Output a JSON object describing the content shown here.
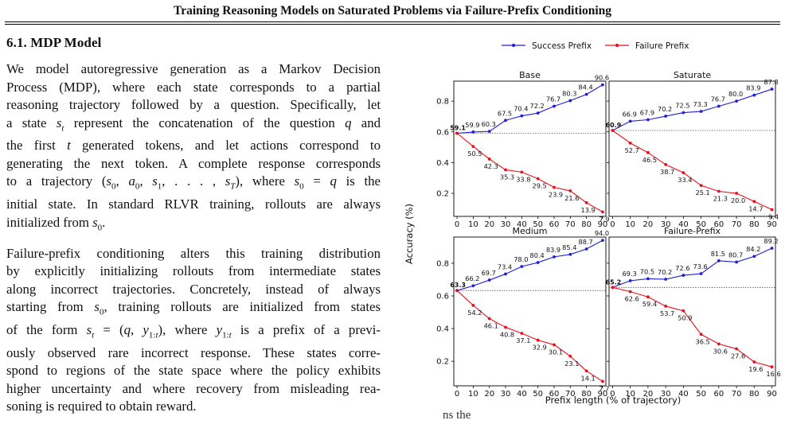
{
  "header": {
    "title": "Training Reasoning Models on Saturated Problems via Failure-Prefix Conditioning"
  },
  "section": {
    "title": "6.1. MDP Model"
  },
  "paragraphs": {
    "p1": [
      "We model autoregressive generation as a Markov Decision",
      "Process (MDP), where each state corresponds to a partial",
      "reasoning trajectory followed by a question. Specifically, let",
      "a state s_t represent the concatenation of the question q and",
      "the first t generated tokens, and let actions correspond to",
      "generating the next token. A complete response corresponds",
      "to a trajectory (s_0, a_0, s_1, . . . , s_T), where s_0 = q is the",
      "initial state. In standard RLVR training, rollouts are always",
      "initialized from s_0."
    ],
    "p2": [
      "Failure-prefix conditioning alters this training distribution",
      "by explicitly initializing rollouts from intermediate states",
      "along incorrect trajectories. Concretely, instead of always",
      "starting from s_0, training rollouts are initialized from states",
      "of the form s_t = (q, y_1:t), where y_1:t is a prefix of a previ-",
      "ously observed rare incorrect response. These states corre-",
      "spond to regions of the state space where the policy exhibits",
      "higher uncertainty and where recovery from misleading rea-",
      "soning is required to obtain reward."
    ]
  },
  "figure": {
    "legend": [
      "Success Prefix",
      "Failure Prefix"
    ],
    "ylabel": "Accuracy (%)",
    "xlabel": "Prefix length (% of trajectory)",
    "colors": {
      "success": "#1f1fd6",
      "failure": "#e8101a",
      "baseline": "#555555"
    },
    "bottom_caption_fragment": "ns the"
  },
  "chart_data": [
    {
      "type": "line",
      "title": "Base",
      "x": [
        0,
        10,
        20,
        30,
        40,
        50,
        60,
        70,
        80,
        90
      ],
      "xlabel": "",
      "ylabel": "Accuracy (%)",
      "ylim": [
        0.05,
        0.93
      ],
      "yticks": [
        0.2,
        0.4,
        0.6,
        0.8
      ],
      "grid": false,
      "legend": "top",
      "series": [
        {
          "name": "Success Prefix",
          "values": [
            59.1,
            59.9,
            60.3,
            67.5,
            70.4,
            72.2,
            76.7,
            80.3,
            84.4,
            90.6
          ]
        },
        {
          "name": "Failure Prefix",
          "values": [
            59.1,
            50.5,
            42.3,
            35.3,
            33.8,
            29.5,
            23.9,
            21.6,
            13.9,
            7.9
          ]
        }
      ],
      "baseline": 59.1
    },
    {
      "type": "line",
      "title": "Saturate",
      "x": [
        0,
        10,
        20,
        30,
        40,
        50,
        60,
        70,
        80,
        90
      ],
      "xlabel": "",
      "ylabel": "",
      "ylim": [
        0.05,
        0.93
      ],
      "yticks": [
        0.2,
        0.4,
        0.6,
        0.8
      ],
      "grid": false,
      "legend": "top",
      "series": [
        {
          "name": "Success Prefix",
          "values": [
            60.9,
            66.9,
            67.9,
            70.2,
            72.5,
            73.3,
            76.7,
            80.0,
            83.9,
            87.8
          ]
        },
        {
          "name": "Failure Prefix",
          "values": [
            60.9,
            52.7,
            46.5,
            38.7,
            33.4,
            25.1,
            21.3,
            20.0,
            14.7,
            9.4
          ]
        }
      ],
      "baseline": 60.9
    },
    {
      "type": "line",
      "title": "Medium",
      "x": [
        0,
        10,
        20,
        30,
        40,
        50,
        60,
        70,
        80,
        90
      ],
      "xlabel": "Prefix length (% of trajectory)",
      "ylabel": "Accuracy (%)",
      "ylim": [
        0.05,
        0.96
      ],
      "yticks": [
        0.2,
        0.4,
        0.6,
        0.8
      ],
      "grid": false,
      "legend": "top",
      "series": [
        {
          "name": "Success Prefix",
          "values": [
            63.3,
            66.2,
            69.7,
            73.4,
            78.0,
            80.4,
            83.9,
            85.4,
            88.7,
            94.0
          ]
        },
        {
          "name": "Failure Prefix",
          "values": [
            63.3,
            54.2,
            46.1,
            40.8,
            37.1,
            32.9,
            30.1,
            23.1,
            14.1,
            7.7
          ]
        }
      ],
      "baseline": 63.3
    },
    {
      "type": "line",
      "title": "Failure-Prefix",
      "x": [
        0,
        10,
        20,
        30,
        40,
        50,
        60,
        70,
        80,
        90
      ],
      "xlabel": "Prefix length (% of trajectory)",
      "ylabel": "",
      "ylim": [
        0.05,
        0.96
      ],
      "yticks": [
        0.2,
        0.4,
        0.6,
        0.8
      ],
      "grid": false,
      "legend": "top",
      "series": [
        {
          "name": "Success Prefix",
          "values": [
            65.2,
            69.3,
            70.5,
            70.2,
            72.6,
            73.6,
            81.5,
            80.7,
            84.2,
            89.2
          ]
        },
        {
          "name": "Failure Prefix",
          "values": [
            65.2,
            62.6,
            59.4,
            53.7,
            50.9,
            36.5,
            30.6,
            27.6,
            19.6,
            16.6
          ]
        }
      ],
      "baseline": 65.2
    }
  ]
}
